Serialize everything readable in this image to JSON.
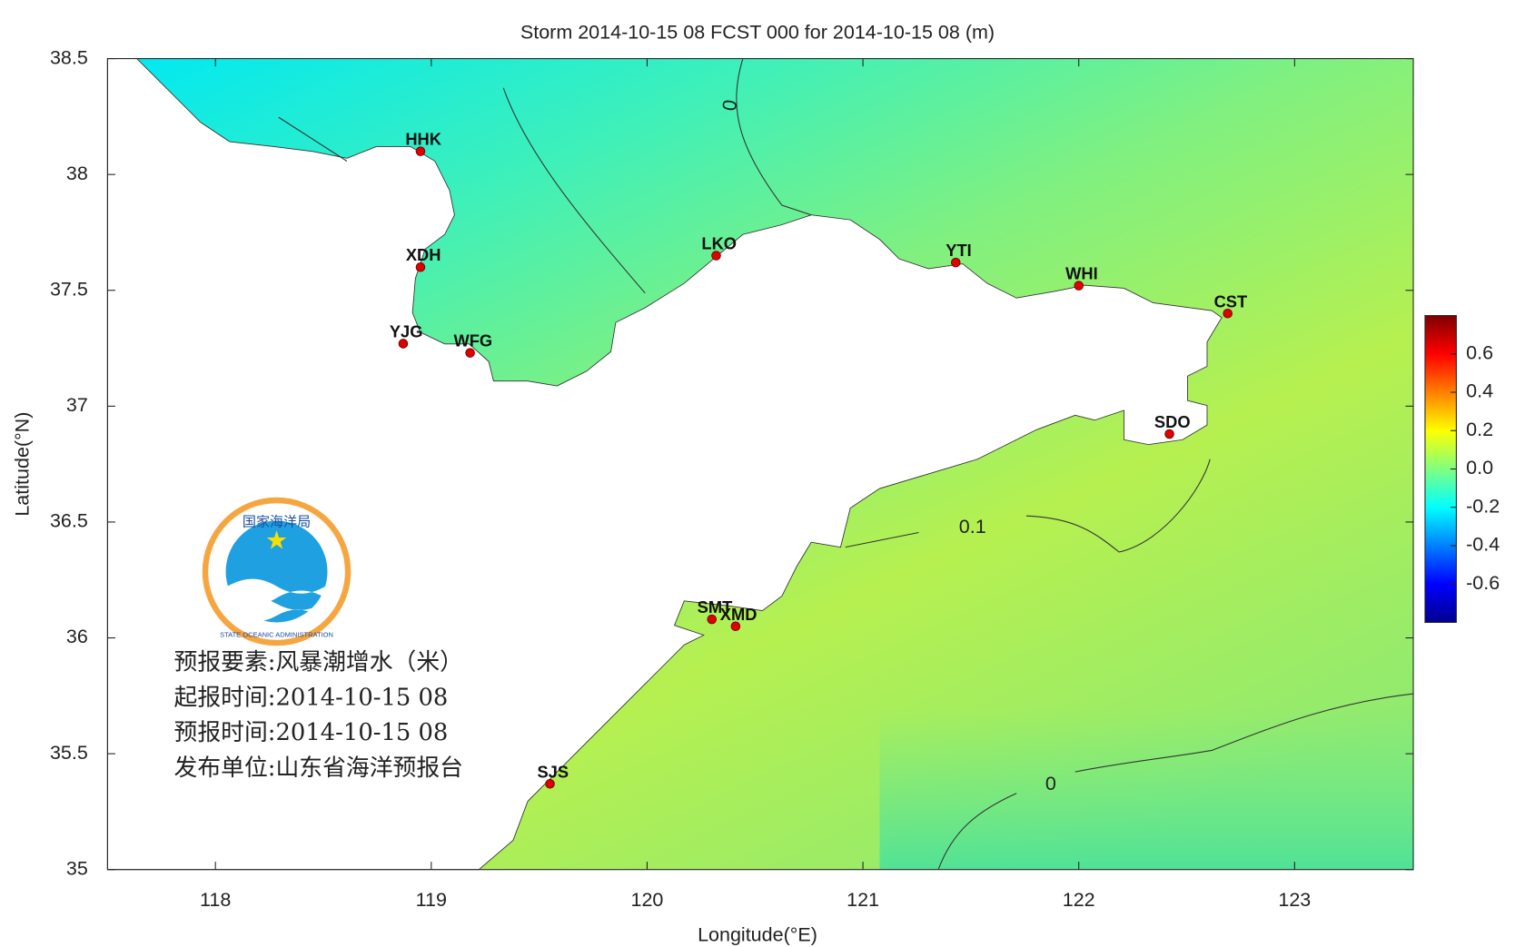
{
  "chart_data": {
    "type": "map",
    "title": "Storm 2014-10-15 08 FCST 000 for 2014-10-15 08 (m)",
    "x_label": "Longitude(°E)",
    "y_label": "Latitude(°N)",
    "xlim": [
      117.5,
      123.55
    ],
    "ylim": [
      35,
      38.5
    ],
    "xticks": [
      118,
      119,
      120,
      121,
      122,
      123
    ],
    "yticks": [
      35,
      35.5,
      36,
      36.5,
      37,
      37.5,
      38,
      38.5
    ],
    "stations": [
      {
        "name": "HHK",
        "lon": 118.95,
        "lat": 38.1
      },
      {
        "name": "XDH",
        "lon": 118.95,
        "lat": 37.6
      },
      {
        "name": "YJG",
        "lon": 118.87,
        "lat": 37.27
      },
      {
        "name": "WFG",
        "lon": 119.18,
        "lat": 37.23
      },
      {
        "name": "LKO",
        "lon": 120.32,
        "lat": 37.65
      },
      {
        "name": "YTI",
        "lon": 121.43,
        "lat": 37.62
      },
      {
        "name": "WHI",
        "lon": 122.0,
        "lat": 37.52
      },
      {
        "name": "CST",
        "lon": 122.69,
        "lat": 37.4
      },
      {
        "name": "SDO",
        "lon": 122.42,
        "lat": 36.88
      },
      {
        "name": "SMT",
        "lon": 120.3,
        "lat": 36.08
      },
      {
        "name": "XMD",
        "lon": 120.41,
        "lat": 36.05
      },
      {
        "name": "SJS",
        "lon": 119.55,
        "lat": 35.37
      }
    ],
    "station_color": "#e00000",
    "contours": [
      {
        "level": 0
      },
      {
        "level": 0.1
      },
      {
        "level": 0
      }
    ],
    "colorbar": {
      "lim": [
        -0.8,
        0.8
      ],
      "ticks": [
        0.6,
        0.4,
        0.2,
        {
          "value": 0,
          "label": "0.0"
        },
        -0.2,
        -0.4,
        -0.6
      ]
    },
    "logo": {
      "cn": "国家海洋局",
      "en": "STATE OCEANIC ADMINISTRATION"
    },
    "info": [
      "预报要素:风暴潮增水（米）",
      "起报时间:2014-10-15 08",
      "预报时间:2014-10-15 08",
      "发布单位:山东省海洋预报台"
    ]
  }
}
